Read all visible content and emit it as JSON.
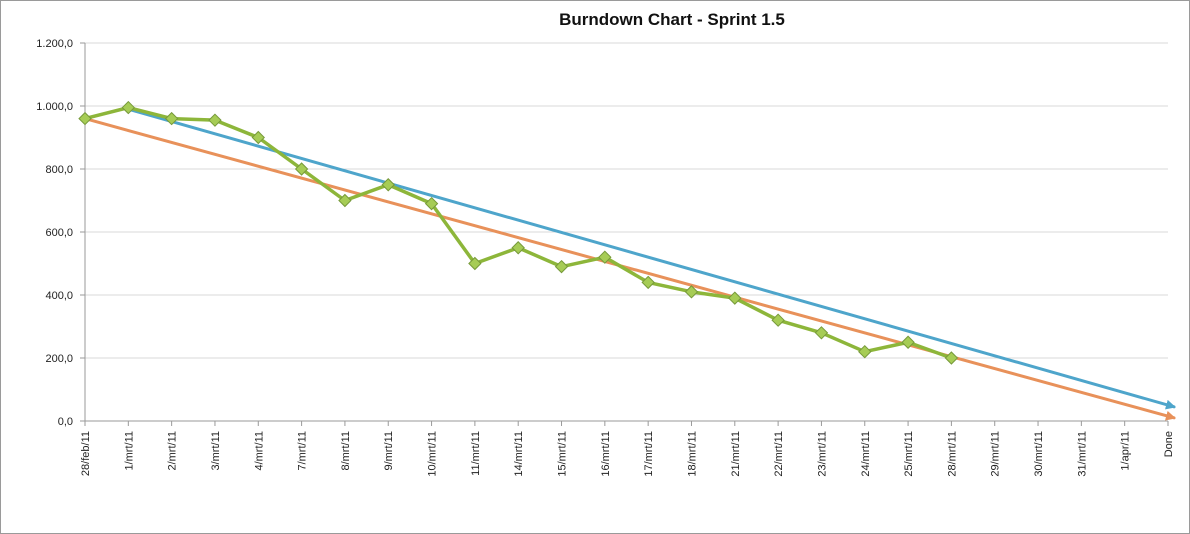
{
  "chart_data": {
    "type": "line",
    "title": "Burndown Chart - Sprint 1.5",
    "xlabel": "",
    "ylabel": "",
    "ylim": [
      0,
      1200
    ],
    "yticks": [
      "0,0",
      "200,0",
      "400,0",
      "600,0",
      "800,0",
      "1.000,0",
      "1.200,0"
    ],
    "grid": true,
    "categories": [
      "28/feb/11",
      "1/mrt/11",
      "2/mrt/11",
      "3/mrt/11",
      "4/mrt/11",
      "7/mrt/11",
      "8/mrt/11",
      "9/mrt/11",
      "10/mrt/11",
      "11/mrt/11",
      "14/mrt/11",
      "15/mrt/11",
      "16/mrt/11",
      "17/mrt/11",
      "18/mrt/11",
      "21/mrt/11",
      "22/mrt/11",
      "23/mrt/11",
      "24/mrt/11",
      "25/mrt/11",
      "28/mrt/11",
      "29/mrt/11",
      "30/mrt/11",
      "31/mrt/11",
      "1/apr/11",
      "Done"
    ],
    "series": [
      {
        "color": "#8db63a",
        "marker": "diamond",
        "values": [
          960,
          995,
          960,
          955,
          900,
          800,
          700,
          750,
          690,
          500,
          550,
          490,
          520,
          440,
          410,
          390,
          320,
          280,
          220,
          250,
          200,
          null,
          null,
          null,
          null,
          null
        ]
      }
    ],
    "trend_lines": [
      {
        "color": "#e8915a",
        "from": {
          "x": "28/feb/11",
          "y": 960
        },
        "to": {
          "x": "Done",
          "y": 10
        },
        "arrow": true
      },
      {
        "color": "#4ea5cb",
        "from": {
          "x": "1/mrt/11",
          "y": 990
        },
        "to": {
          "x": "Done",
          "y": 45
        },
        "arrow": true
      }
    ]
  }
}
